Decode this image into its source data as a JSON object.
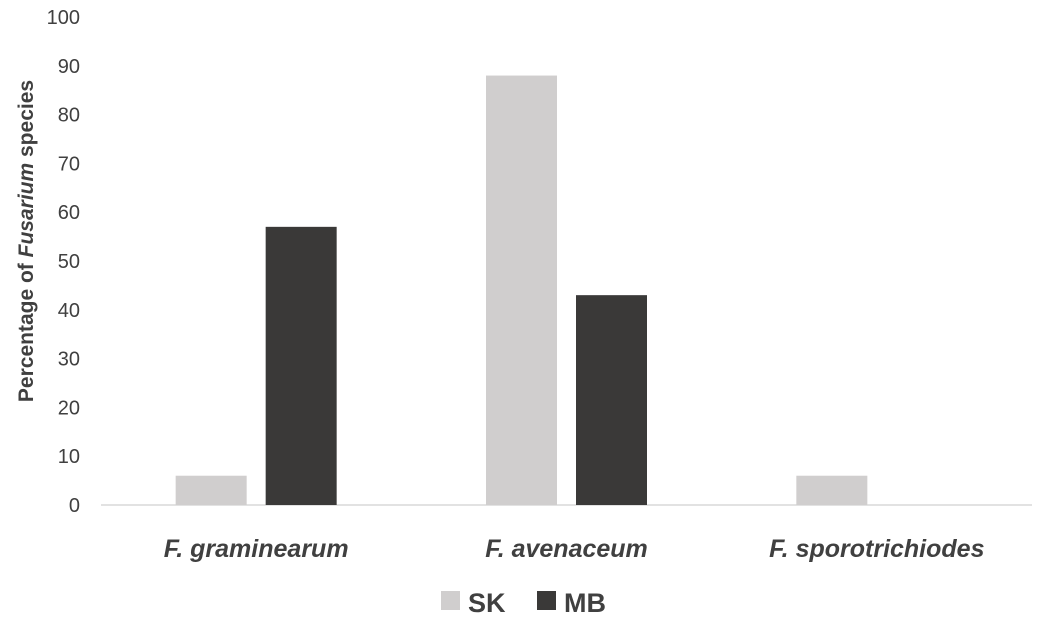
{
  "chart_data": {
    "type": "bar",
    "categories": [
      "F. graminearum",
      "F. avenaceum",
      "F. sporotrichiodes"
    ],
    "series": [
      {
        "name": "SK",
        "values": [
          6,
          88,
          6
        ],
        "color": "#d0cece"
      },
      {
        "name": "MB",
        "values": [
          57,
          43,
          0
        ],
        "color": "#3a3938"
      }
    ],
    "ylabel_prefix": "Percentage of ",
    "ylabel_italic": "Fusarium",
    "ylabel_suffix": " species",
    "ylim": [
      0,
      100
    ],
    "yticks": [
      "0",
      "10",
      "20",
      "30",
      "40",
      "50",
      "60",
      "70",
      "80",
      "90",
      "100"
    ],
    "grid": false,
    "legend_position": "bottom"
  }
}
